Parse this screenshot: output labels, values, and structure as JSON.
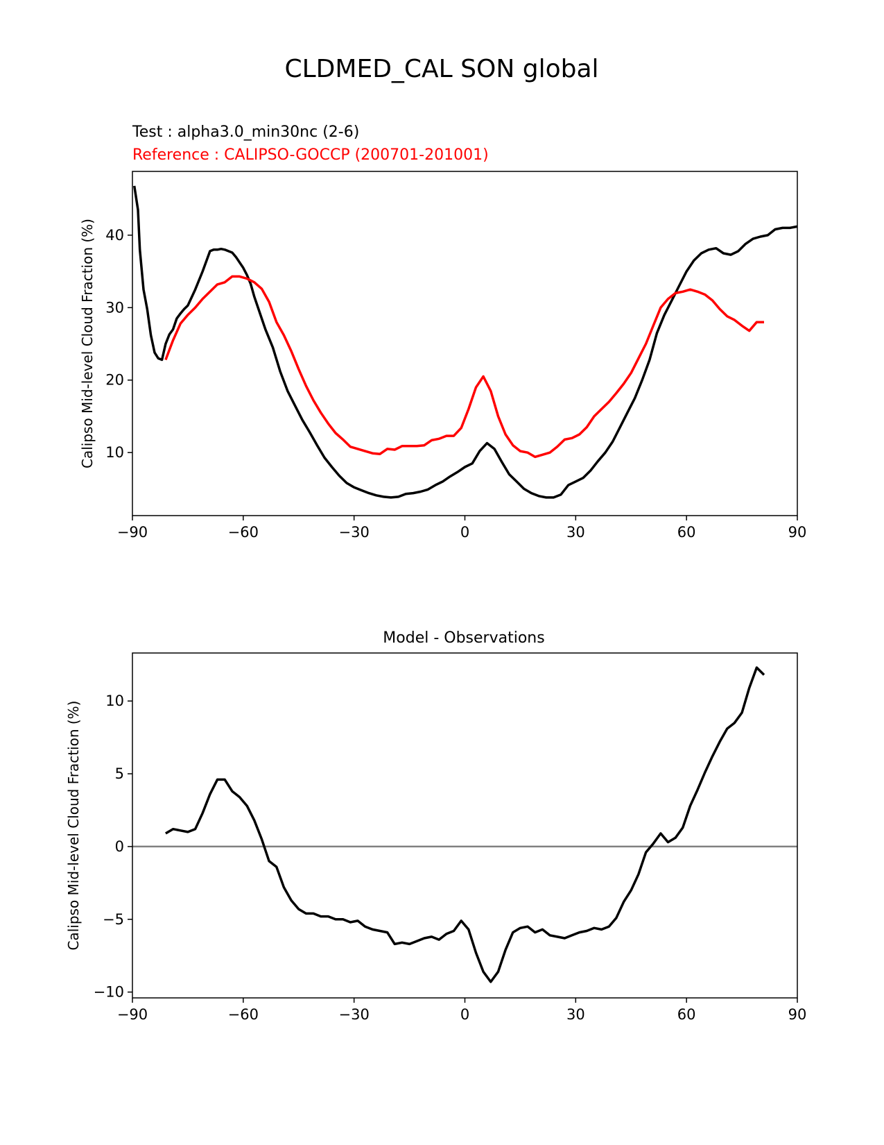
{
  "figure_title": "CLDMED_CAL SON global",
  "colors": {
    "test": "#000000",
    "reference": "#ff0000",
    "diff": "#000000",
    "zero_line": "#808080",
    "axes": "#000000"
  },
  "chart_data": [
    {
      "type": "line",
      "test_label": "Test : alpha3.0_min30nc (2-6)",
      "reference_label": "Reference : CALIPSO-GOCCP (200701-201001)",
      "xlabel": "",
      "ylabel": "Calipso Mid-level Cloud Fraction (%)",
      "xlim": [
        -90,
        90
      ],
      "ylim": [
        1.3,
        48.8
      ],
      "xticks": [
        -90,
        -60,
        -30,
        0,
        30,
        60,
        90
      ],
      "xtick_labels": [
        "−90",
        "−60",
        "−30",
        "0",
        "30",
        "60",
        "90"
      ],
      "yticks": [
        10,
        20,
        30,
        40
      ],
      "ytick_labels": [
        "10",
        "20",
        "30",
        "40"
      ],
      "series": [
        {
          "name": "Test",
          "color": "#000000",
          "x": [
            -89.5,
            -88.5,
            -88,
            -87,
            -86,
            -85,
            -84,
            -83,
            -82,
            -81,
            -80,
            -79,
            -78,
            -77,
            -76,
            -75,
            -73,
            -71,
            -69,
            -68,
            -67,
            -66,
            -65,
            -63,
            -62,
            -60,
            -59,
            -58,
            -57,
            -55,
            -54,
            -52,
            -50,
            -48,
            -46,
            -44,
            -42,
            -40,
            -38,
            -36,
            -34,
            -32,
            -30,
            -28,
            -26,
            -24,
            -22,
            -20,
            -18,
            -16,
            -14,
            -12,
            -10,
            -8,
            -6,
            -4,
            -2,
            0,
            2,
            4,
            6,
            8,
            10,
            12,
            14,
            16,
            18,
            20,
            22,
            24,
            26,
            28,
            30,
            32,
            34,
            36,
            38,
            40,
            42,
            44,
            46,
            48,
            50,
            52,
            54,
            56,
            58,
            60,
            62,
            64,
            66,
            68,
            70,
            72,
            74,
            76,
            78,
            80,
            82,
            84,
            86,
            88,
            90
          ],
          "values": [
            46.8,
            43.5,
            38.0,
            32.5,
            29.8,
            26.2,
            23.8,
            23.0,
            22.8,
            25.0,
            26.3,
            27.0,
            28.5,
            29.2,
            29.8,
            30.3,
            32.5,
            35.0,
            37.8,
            38.0,
            38.0,
            38.1,
            38.0,
            37.6,
            37.0,
            35.5,
            34.5,
            33.3,
            31.5,
            28.5,
            27.0,
            24.5,
            21.2,
            18.5,
            16.5,
            14.5,
            12.8,
            11.0,
            9.3,
            8.0,
            6.8,
            5.8,
            5.2,
            4.8,
            4.4,
            4.1,
            3.9,
            3.8,
            3.9,
            4.3,
            4.4,
            4.6,
            4.9,
            5.5,
            6.0,
            6.7,
            7.3,
            8.0,
            8.5,
            10.2,
            11.3,
            10.5,
            8.7,
            7.0,
            6.0,
            5.0,
            4.4,
            4.0,
            3.8,
            3.8,
            4.2,
            5.5,
            6.0,
            6.5,
            7.5,
            8.8,
            10.0,
            11.5,
            13.5,
            15.5,
            17.5,
            20.0,
            22.8,
            26.5,
            29.0,
            31.0,
            33.0,
            35.0,
            36.5,
            37.5,
            38.0,
            38.2,
            37.5,
            37.3,
            37.8,
            38.8,
            39.5,
            39.8,
            40.0,
            40.8,
            41.0,
            41.0,
            41.2
          ]
        },
        {
          "name": "Reference",
          "color": "#ff0000",
          "x": [
            -81,
            -79,
            -77,
            -75,
            -73,
            -71,
            -69,
            -67,
            -65,
            -63,
            -61,
            -59,
            -57,
            -55,
            -53,
            -51,
            -49,
            -47,
            -45,
            -43,
            -41,
            -39,
            -37,
            -35,
            -33,
            -31,
            -29,
            -27,
            -25,
            -23,
            -21,
            -19,
            -17,
            -15,
            -13,
            -11,
            -9,
            -7,
            -5,
            -3,
            -1,
            1,
            3,
            5,
            7,
            9,
            11,
            13,
            15,
            17,
            19,
            21,
            23,
            25,
            27,
            29,
            31,
            33,
            35,
            37,
            39,
            41,
            43,
            45,
            47,
            49,
            51,
            53,
            55,
            57,
            59,
            61,
            63,
            65,
            67,
            69,
            71,
            73,
            75,
            77,
            79,
            81
          ],
          "values": [
            22.8,
            25.5,
            27.8,
            29.0,
            30.0,
            31.2,
            32.2,
            33.2,
            33.5,
            34.3,
            34.3,
            34.0,
            33.5,
            32.6,
            30.8,
            28.0,
            26.2,
            24.0,
            21.5,
            19.2,
            17.2,
            15.5,
            14.0,
            12.7,
            11.8,
            10.8,
            10.5,
            10.2,
            9.9,
            9.8,
            10.5,
            10.4,
            10.9,
            10.9,
            10.9,
            11.0,
            11.7,
            11.9,
            12.3,
            12.3,
            13.4,
            16.0,
            19.0,
            20.5,
            18.5,
            15.0,
            12.5,
            11.0,
            10.2,
            10.0,
            9.4,
            9.7,
            10.0,
            10.8,
            11.8,
            12.0,
            12.5,
            13.5,
            15.0,
            16.0,
            17.0,
            18.2,
            19.5,
            21.0,
            23.0,
            25.0,
            27.5,
            30.0,
            31.2,
            32.0,
            32.2,
            32.5,
            32.2,
            31.8,
            31.0,
            29.8,
            28.8,
            28.3,
            27.5,
            26.8,
            28.0,
            28.0
          ]
        }
      ]
    },
    {
      "type": "line",
      "title": "Model - Observations",
      "xlabel": "",
      "ylabel": "Calipso Mid-level Cloud Fraction (%)",
      "xlim": [
        -90,
        90
      ],
      "ylim": [
        -10.4,
        13.3
      ],
      "xticks": [
        -90,
        -60,
        -30,
        0,
        30,
        60,
        90
      ],
      "xtick_labels": [
        "−90",
        "−60",
        "−30",
        "0",
        "30",
        "60",
        "90"
      ],
      "yticks": [
        -10,
        -5,
        0,
        5,
        10
      ],
      "ytick_labels": [
        "−10",
        "−5",
        "0",
        "5",
        "10"
      ],
      "zero_line": true,
      "series": [
        {
          "name": "Model - Observations",
          "color": "#000000",
          "x": [
            -81,
            -79,
            -77,
            -75,
            -73,
            -71,
            -69,
            -67,
            -65,
            -63,
            -61,
            -59,
            -57,
            -55,
            -53,
            -51,
            -49,
            -47,
            -45,
            -43,
            -41,
            -39,
            -37,
            -35,
            -33,
            -31,
            -29,
            -27,
            -25,
            -23,
            -21,
            -19,
            -17,
            -15,
            -13,
            -11,
            -9,
            -7,
            -5,
            -3,
            -1,
            1,
            3,
            5,
            7,
            9,
            11,
            13,
            15,
            17,
            19,
            21,
            23,
            25,
            27,
            29,
            31,
            33,
            35,
            37,
            39,
            41,
            43,
            45,
            47,
            49,
            51,
            53,
            55,
            57,
            59,
            61,
            63,
            65,
            67,
            69,
            71,
            73,
            75,
            77,
            79,
            81
          ],
          "values": [
            0.9,
            1.2,
            1.1,
            1.0,
            1.2,
            2.3,
            3.6,
            4.6,
            4.6,
            3.8,
            3.4,
            2.8,
            1.8,
            0.5,
            -1.0,
            -1.4,
            -2.8,
            -3.7,
            -4.3,
            -4.6,
            -4.6,
            -4.8,
            -4.8,
            -5.0,
            -5.0,
            -5.2,
            -5.1,
            -5.5,
            -5.7,
            -5.8,
            -5.9,
            -6.7,
            -6.6,
            -6.7,
            -6.5,
            -6.3,
            -6.2,
            -6.4,
            -6.0,
            -5.8,
            -5.1,
            -5.7,
            -7.3,
            -8.6,
            -9.3,
            -8.6,
            -7.1,
            -5.9,
            -5.6,
            -5.5,
            -5.9,
            -5.7,
            -6.1,
            -6.2,
            -6.3,
            -6.1,
            -5.9,
            -5.8,
            -5.6,
            -5.7,
            -5.5,
            -4.9,
            -3.8,
            -3.0,
            -1.9,
            -0.4,
            0.2,
            0.9,
            0.3,
            0.6,
            1.3,
            2.8,
            3.9,
            5.1,
            6.2,
            7.2,
            8.1,
            8.5,
            9.2,
            10.9,
            12.3,
            11.8
          ]
        }
      ]
    }
  ]
}
